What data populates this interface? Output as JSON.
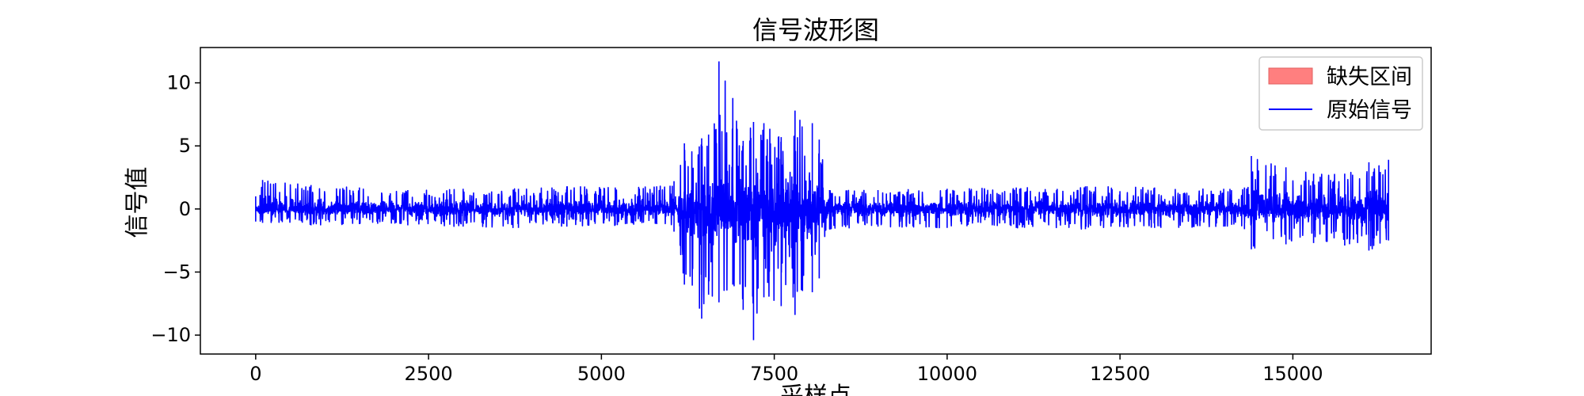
{
  "chart_data": {
    "type": "line",
    "title": "信号波形图",
    "xlabel": "采样点",
    "ylabel": "信号值",
    "xlim": [
      -800,
      17000
    ],
    "ylim": [
      -11.5,
      12.8
    ],
    "xticks": [
      0,
      2500,
      5000,
      7500,
      10000,
      12500,
      15000
    ],
    "yticks": [
      -10,
      -5,
      0,
      5,
      10
    ],
    "grid": false,
    "legend_position": "top-right",
    "x_range": [
      0,
      16384
    ],
    "series": [
      {
        "name": "原始信号",
        "color": "#0000ff",
        "envelope": [
          {
            "x": 0,
            "max": 1.0,
            "min": -1.0
          },
          {
            "x": 100,
            "max": 2.3,
            "min": -1.1
          },
          {
            "x": 800,
            "max": 1.9,
            "min": -1.3
          },
          {
            "x": 1500,
            "max": 1.7,
            "min": -1.2
          },
          {
            "x": 2200,
            "max": 1.5,
            "min": -1.3
          },
          {
            "x": 3000,
            "max": 1.6,
            "min": -1.4
          },
          {
            "x": 3800,
            "max": 1.6,
            "min": -1.5
          },
          {
            "x": 4500,
            "max": 1.8,
            "min": -1.4
          },
          {
            "x": 5200,
            "max": 1.7,
            "min": -1.3
          },
          {
            "x": 5800,
            "max": 1.8,
            "min": -1.2
          },
          {
            "x": 6050,
            "max": 2.2,
            "min": -1.8
          },
          {
            "x": 6200,
            "max": 5.2,
            "min": -6.0
          },
          {
            "x": 6450,
            "max": 5.6,
            "min": -8.7
          },
          {
            "x": 6550,
            "max": 5.9,
            "min": -6.8
          },
          {
            "x": 6700,
            "max": 11.7,
            "min": -7.4
          },
          {
            "x": 6900,
            "max": 8.8,
            "min": -6.0
          },
          {
            "x": 7050,
            "max": 5.4,
            "min": -8.0
          },
          {
            "x": 7200,
            "max": 6.9,
            "min": -10.4
          },
          {
            "x": 7350,
            "max": 6.8,
            "min": -7.0
          },
          {
            "x": 7600,
            "max": 5.7,
            "min": -7.7
          },
          {
            "x": 7800,
            "max": 7.8,
            "min": -8.4
          },
          {
            "x": 8050,
            "max": 6.8,
            "min": -6.6
          },
          {
            "x": 8150,
            "max": 5.5,
            "min": -5.5
          },
          {
            "x": 8300,
            "max": 1.5,
            "min": -1.6
          },
          {
            "x": 9000,
            "max": 1.5,
            "min": -1.4
          },
          {
            "x": 10000,
            "max": 1.6,
            "min": -1.5
          },
          {
            "x": 11000,
            "max": 1.7,
            "min": -1.5
          },
          {
            "x": 12000,
            "max": 1.8,
            "min": -1.6
          },
          {
            "x": 13000,
            "max": 1.7,
            "min": -1.5
          },
          {
            "x": 14000,
            "max": 1.6,
            "min": -1.4
          },
          {
            "x": 14300,
            "max": 1.7,
            "min": -1.6
          },
          {
            "x": 14400,
            "max": 4.2,
            "min": -3.2
          },
          {
            "x": 14900,
            "max": 3.3,
            "min": -2.8
          },
          {
            "x": 15300,
            "max": 2.8,
            "min": -2.7
          },
          {
            "x": 15750,
            "max": 2.8,
            "min": -2.9
          },
          {
            "x": 16100,
            "max": 3.7,
            "min": -3.3
          },
          {
            "x": 16384,
            "max": 3.9,
            "min": -2.5
          }
        ]
      }
    ],
    "legend": [
      {
        "type": "patch",
        "label": "缺失区间",
        "color": "#ff7f7f"
      },
      {
        "type": "line",
        "label": "原始信号",
        "color": "#0000ff"
      }
    ]
  }
}
